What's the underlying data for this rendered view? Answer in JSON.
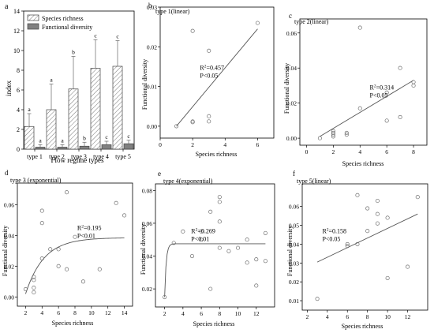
{
  "chart_data": [
    {
      "id": "a",
      "type": "bar",
      "panel_label": "a",
      "title": "",
      "xlabel": "Flow regime types",
      "ylabel": "index",
      "categories": [
        "type 1",
        "type 2",
        "type 3",
        "type 4",
        "type 5"
      ],
      "ylim": [
        0,
        14
      ],
      "yticks": [
        0,
        2,
        4,
        6,
        8,
        10,
        12,
        14
      ],
      "legend": {
        "placement": "top-left",
        "entries": [
          "Species richness",
          "Functional diversity"
        ]
      },
      "series": [
        {
          "name": "Species richness",
          "pattern": "hatched",
          "color": "#ffffff",
          "values": [
            2.3,
            4.0,
            6.1,
            8.2,
            8.4
          ],
          "errors": [
            1.3,
            2.6,
            3.3,
            2.9,
            2.6
          ],
          "letters": [
            "a",
            "a",
            "b",
            "c",
            "c"
          ]
        },
        {
          "name": "Functional diversity",
          "color": "#808080",
          "values": [
            0.2,
            0.2,
            0.3,
            0.45,
            0.55
          ],
          "errors": [
            0.25,
            0.25,
            0.4,
            0.35,
            0.35
          ],
          "letters": [
            "a",
            "a",
            "b",
            "c",
            "c"
          ]
        }
      ]
    },
    {
      "id": "b",
      "type": "scatter",
      "panel_label": "b",
      "title": "type 1(linear)",
      "xlabel": "Species richness",
      "ylabel": "Functional diversity",
      "xlim": [
        0,
        7
      ],
      "ylim": [
        -0.003,
        0.03
      ],
      "xticks": [
        0,
        2,
        4,
        6
      ],
      "yticks": [
        0.0,
        0.01,
        0.02,
        0.03
      ],
      "points": [
        [
          1,
          0.0
        ],
        [
          2,
          0.024
        ],
        [
          2,
          0.001
        ],
        [
          2,
          0.0012
        ],
        [
          3,
          0.019
        ],
        [
          3,
          0.0025
        ],
        [
          3,
          0.0012
        ],
        [
          6,
          0.026
        ]
      ],
      "fit": {
        "kind": "linear",
        "from": [
          1,
          0.0
        ],
        "to": [
          6,
          0.0245
        ]
      },
      "r2": "0.457",
      "p": "P<0.05"
    },
    {
      "id": "c",
      "type": "scatter",
      "panel_label": "c",
      "title": "type 2(linear)",
      "xlabel": "Species richness",
      "ylabel": "Functional diversity",
      "xlim": [
        -0.5,
        9
      ],
      "ylim": [
        -0.004,
        0.068
      ],
      "xticks": [
        0,
        2,
        4,
        6,
        8
      ],
      "yticks": [
        0.0,
        0.02,
        0.04,
        0.06
      ],
      "points": [
        [
          1,
          0.0
        ],
        [
          2,
          0.001
        ],
        [
          2,
          0.002
        ],
        [
          2,
          0.003
        ],
        [
          2,
          0.004
        ],
        [
          3,
          0.002
        ],
        [
          3,
          0.003
        ],
        [
          4,
          0.017
        ],
        [
          4,
          0.063
        ],
        [
          6,
          0.01
        ],
        [
          6,
          0.026
        ],
        [
          7,
          0.012
        ],
        [
          7,
          0.04
        ],
        [
          8,
          0.03
        ],
        [
          8,
          0.032
        ]
      ],
      "fit": {
        "kind": "linear",
        "from": [
          1,
          0.001
        ],
        "to": [
          8,
          0.033
        ]
      },
      "r2": "0.314",
      "p": "P<0.05"
    },
    {
      "id": "d",
      "type": "scatter",
      "panel_label": "d",
      "title": "type 3 (exponential)",
      "xlabel": "Species richness",
      "ylabel": "Functional diversity",
      "xlim": [
        1,
        15
      ],
      "ylim": [
        -0.006,
        0.074
      ],
      "xticks": [
        2,
        4,
        6,
        8,
        10,
        12,
        14
      ],
      "yticks": [
        0.0,
        0.02,
        0.04,
        0.06
      ],
      "points": [
        [
          2,
          0.005
        ],
        [
          3,
          0.003
        ],
        [
          3,
          0.006
        ],
        [
          3,
          0.011
        ],
        [
          3,
          0.013
        ],
        [
          4,
          0.025
        ],
        [
          4,
          0.048
        ],
        [
          4,
          0.056
        ],
        [
          5,
          0.031
        ],
        [
          6,
          0.02
        ],
        [
          6,
          0.031
        ],
        [
          7,
          0.018
        ],
        [
          7,
          0.068
        ],
        [
          8,
          0.039
        ],
        [
          9,
          0.01
        ],
        [
          11,
          0.018
        ],
        [
          13,
          0.061
        ],
        [
          14,
          0.053
        ]
      ],
      "fit": {
        "kind": "exponential",
        "plateau": 0.0385,
        "x0": 2,
        "y0": 0.002,
        "rate": 0.45,
        "x_end": 14
      },
      "r2": "0.195",
      "p": "P<0.01"
    },
    {
      "id": "e",
      "type": "scatter",
      "panel_label": "e",
      "title": "type 4(exponential)",
      "xlabel": "Species richness",
      "ylabel": "Functional diversity",
      "xlim": [
        1,
        14
      ],
      "ylim": [
        0.009,
        0.084
      ],
      "xticks": [
        2,
        4,
        6,
        8,
        10,
        12
      ],
      "yticks": [
        0.02,
        0.04,
        0.06,
        0.08
      ],
      "points": [
        [
          2,
          0.015
        ],
        [
          3,
          0.048
        ],
        [
          4,
          0.055
        ],
        [
          5,
          0.04
        ],
        [
          6,
          0.05
        ],
        [
          6,
          0.055
        ],
        [
          7,
          0.067
        ],
        [
          7,
          0.02
        ],
        [
          8,
          0.073
        ],
        [
          8,
          0.076
        ],
        [
          8,
          0.061
        ],
        [
          8,
          0.045
        ],
        [
          9,
          0.043
        ],
        [
          10,
          0.045
        ],
        [
          11,
          0.036
        ],
        [
          11,
          0.05
        ],
        [
          12,
          0.038
        ],
        [
          12,
          0.022
        ],
        [
          13,
          0.054
        ],
        [
          13,
          0.037
        ]
      ],
      "fit": {
        "kind": "exponential",
        "plateau": 0.0475,
        "x0": 2,
        "y0": 0.015,
        "rate": 6.0,
        "x_end": 13
      },
      "r2": "0.269",
      "p": "P<0.01"
    },
    {
      "id": "f",
      "type": "scatter",
      "panel_label": "f",
      "title": "type 5(linear)",
      "xlabel": "Species richness",
      "ylabel": "Functional diversity",
      "xlim": [
        1.5,
        14
      ],
      "ylim": [
        0.005,
        0.072
      ],
      "xticks": [
        2,
        4,
        6,
        8,
        10,
        12
      ],
      "yticks": [
        0.01,
        0.02,
        0.03,
        0.04,
        0.05,
        0.06
      ],
      "points": [
        [
          3,
          0.011
        ],
        [
          6,
          0.04
        ],
        [
          6,
          0.039
        ],
        [
          7,
          0.066
        ],
        [
          7,
          0.04
        ],
        [
          8,
          0.047
        ],
        [
          8,
          0.059
        ],
        [
          9,
          0.063
        ],
        [
          9,
          0.051
        ],
        [
          9,
          0.056
        ],
        [
          10,
          0.022
        ],
        [
          10,
          0.054
        ],
        [
          12,
          0.028
        ],
        [
          13,
          0.065
        ]
      ],
      "fit": {
        "kind": "linear",
        "from": [
          3,
          0.0305
        ],
        "to": [
          13,
          0.056
        ]
      },
      "r2": "0.158",
      "p": "P<0.05"
    }
  ]
}
